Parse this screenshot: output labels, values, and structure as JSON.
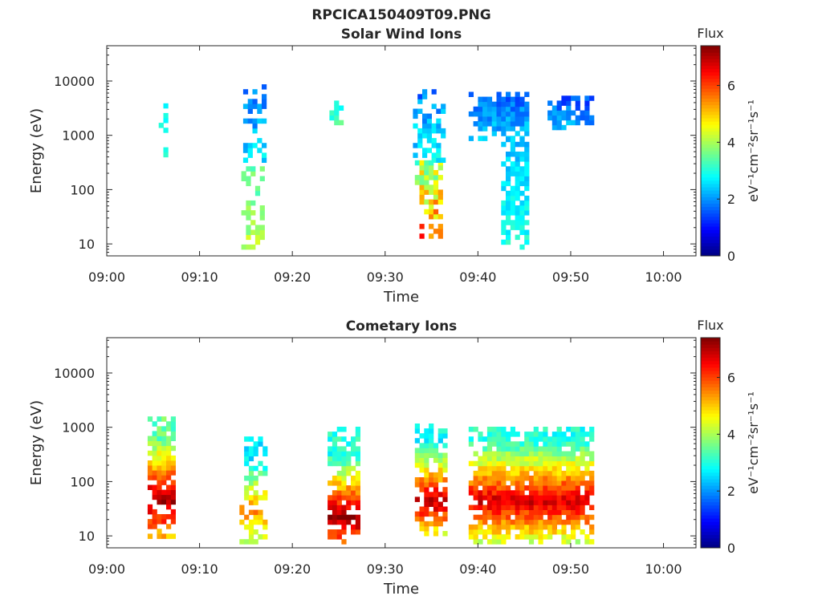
{
  "figure_title": "RPCICA150409T09.PNG",
  "colorscale": [
    "#00007f",
    "#0000ff",
    "#007fff",
    "#00ffff",
    "#7fff7f",
    "#ffff00",
    "#ff7f00",
    "#ff0000",
    "#7f0000"
  ],
  "chart_data": [
    {
      "type": "heatmap",
      "title": "Solar Wind Ions",
      "xlabel": "Time",
      "ylabel": "Energy (eV)",
      "x_ticks": [
        "09:00",
        "09:10",
        "09:20",
        "09:30",
        "09:40",
        "09:50",
        "10:00"
      ],
      "xlim_minutes": [
        0,
        63.5
      ],
      "y_ticks": [
        "10",
        "100",
        "1000",
        "10000"
      ],
      "ylim_log10": [
        0.78,
        4.65
      ],
      "y_scale": "log",
      "colorbar": {
        "label": "Flux",
        "units_label": "eV⁻¹cm⁻²sr⁻¹s⁻¹",
        "ticks": [
          "0",
          "2",
          "4",
          "6"
        ],
        "range": [
          0,
          7.4
        ]
      },
      "clusters": [
        {
          "t": [
            5.6,
            6.6
          ],
          "loge": [
            2.6,
            3.6
          ],
          "flux": [
            2.5,
            3.3
          ],
          "density": 0.5
        },
        {
          "t": [
            14.5,
            16.8
          ],
          "loge": [
            0.9,
            2.5
          ],
          "flux": [
            3.0,
            4.5
          ],
          "density": 0.5
        },
        {
          "t": [
            14.7,
            16.9
          ],
          "loge": [
            2.5,
            3.85
          ],
          "flux": [
            1.3,
            3.0
          ],
          "density": 0.5
        },
        {
          "t": [
            24.0,
            25.5
          ],
          "loge": [
            3.1,
            3.6
          ],
          "flux": [
            2.5,
            3.7
          ],
          "density": 0.75
        },
        {
          "t": [
            33.2,
            36.0
          ],
          "loge": [
            1.1,
            2.5
          ],
          "flux": [
            3.0,
            6.5
          ],
          "density": 0.7
        },
        {
          "t": [
            33.0,
            36.5
          ],
          "loge": [
            2.5,
            3.8
          ],
          "flux": [
            1.3,
            3.2
          ],
          "density": 0.5
        },
        {
          "t": [
            39.0,
            45.5
          ],
          "loge": [
            2.9,
            3.75
          ],
          "flux": [
            1.2,
            2.8
          ],
          "density": 0.85
        },
        {
          "t": [
            42.5,
            45.5
          ],
          "loge": [
            0.9,
            2.9
          ],
          "flux": [
            2.0,
            3.3
          ],
          "density": 0.75
        },
        {
          "t": [
            47.5,
            52.5
          ],
          "loge": [
            3.1,
            3.7
          ],
          "flux": [
            1.0,
            2.6
          ],
          "density": 0.8
        }
      ]
    },
    {
      "type": "heatmap",
      "title": "Cometary Ions",
      "xlabel": "Time",
      "ylabel": "Energy (eV)",
      "x_ticks": [
        "09:00",
        "09:10",
        "09:20",
        "09:30",
        "09:40",
        "09:50",
        "10:00"
      ],
      "xlim_minutes": [
        0,
        63.5
      ],
      "y_ticks": [
        "10",
        "100",
        "1000",
        "10000"
      ],
      "ylim_log10": [
        0.78,
        4.65
      ],
      "y_scale": "log",
      "colorbar": {
        "label": "Flux",
        "units_label": "eV⁻¹cm⁻²sr⁻¹s⁻¹",
        "ticks": [
          "0",
          "2",
          "4",
          "6"
        ],
        "range": [
          0,
          7.4
        ]
      },
      "clusters": [
        {
          "t": [
            4.4,
            7.4
          ],
          "loge": [
            0.95,
            3.15
          ],
          "flux": [
            3.5,
            7.2
          ],
          "peak_loge": 1.6,
          "density": 0.85
        },
        {
          "t": [
            14.3,
            17.2
          ],
          "loge": [
            0.85,
            2.8
          ],
          "flux": [
            2.5,
            5.5
          ],
          "peak_loge": 1.4,
          "density": 0.6
        },
        {
          "t": [
            23.8,
            27.0
          ],
          "loge": [
            0.85,
            3.0
          ],
          "flux": [
            3.0,
            7.3
          ],
          "peak_loge": 1.3,
          "density": 0.8
        },
        {
          "t": [
            33.2,
            36.5
          ],
          "loge": [
            1.0,
            3.0
          ],
          "flux": [
            2.8,
            7.0
          ],
          "peak_loge": 1.6,
          "density": 0.75
        },
        {
          "t": [
            39.0,
            52.5
          ],
          "loge": [
            0.85,
            2.95
          ],
          "flux": [
            3.0,
            6.8
          ],
          "peak_loge": 1.6,
          "density": 0.95
        }
      ]
    }
  ]
}
